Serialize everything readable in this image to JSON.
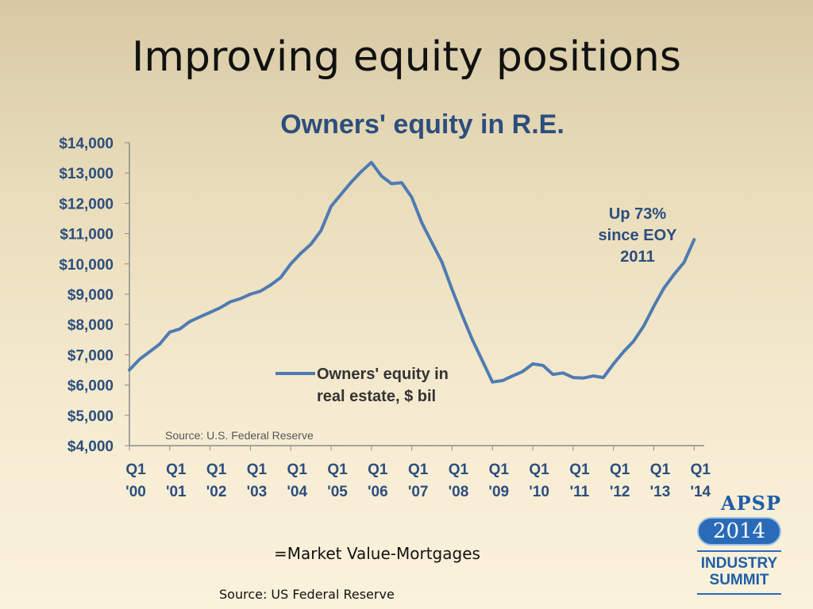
{
  "slide": {
    "title": "Improving equity positions",
    "footnote": "=Market Value-Mortgages",
    "source": "Source: US Federal Reserve"
  },
  "logo": {
    "brand": "APSP",
    "year": "2014",
    "line1": "INDUSTRY",
    "line2": "SUMMIT"
  },
  "chart_data": {
    "type": "line",
    "title": "Owners' equity in R.E.",
    "source_note": "Source: U.S. Federal Reserve",
    "annotation": [
      "Up 73%",
      "since EOY",
      "2011"
    ],
    "ylim": [
      4000,
      14000
    ],
    "yticks": [
      4000,
      5000,
      6000,
      7000,
      8000,
      9000,
      10000,
      11000,
      12000,
      13000,
      14000
    ],
    "ytick_labels": [
      "$4,000",
      "$5,000",
      "$6,000",
      "$7,000",
      "$8,000",
      "$9,000",
      "$10,000",
      "$11,000",
      "$12,000",
      "$13,000",
      "$14,000"
    ],
    "xlim": [
      2000,
      2014.25
    ],
    "xticks": [
      2000,
      2001,
      2002,
      2003,
      2004,
      2005,
      2006,
      2007,
      2008,
      2009,
      2010,
      2011,
      2012,
      2013,
      2014
    ],
    "xtick_labels": [
      [
        "Q1",
        "'00"
      ],
      [
        "Q1",
        "'01"
      ],
      [
        "Q1",
        "'02"
      ],
      [
        "Q1",
        "'03"
      ],
      [
        "Q1",
        "'04"
      ],
      [
        "Q1",
        "'05"
      ],
      [
        "Q1",
        "'06"
      ],
      [
        "Q1",
        "'07"
      ],
      [
        "Q1",
        "'08"
      ],
      [
        "Q1",
        "'09"
      ],
      [
        "Q1",
        "'10"
      ],
      [
        "Q1",
        "'11"
      ],
      [
        "Q1",
        "'12"
      ],
      [
        "Q1",
        "'13"
      ],
      [
        "Q1",
        "'14"
      ]
    ],
    "legend": [
      "Owners' equity in",
      "real estate, $ bil"
    ],
    "grid": false,
    "colors": {
      "line": "#4f7bb2",
      "text": "#2c4e7e"
    },
    "series": [
      {
        "name": "Owners' equity in real estate, $ bil",
        "x": [
          2000,
          2000.25,
          2000.5,
          2000.75,
          2001,
          2001.25,
          2001.5,
          2001.75,
          2002,
          2002.25,
          2002.5,
          2002.75,
          2003,
          2003.25,
          2003.5,
          2003.75,
          2004,
          2004.25,
          2004.5,
          2004.75,
          2005,
          2005.25,
          2005.5,
          2005.75,
          2006,
          2006.25,
          2006.5,
          2006.75,
          2007,
          2007.25,
          2007.5,
          2007.75,
          2008,
          2008.25,
          2008.5,
          2008.75,
          2009,
          2009.25,
          2009.5,
          2009.75,
          2010,
          2010.25,
          2010.5,
          2010.75,
          2011,
          2011.25,
          2011.5,
          2011.75,
          2012,
          2012.25,
          2012.5,
          2012.75,
          2013,
          2013.25,
          2013.5,
          2013.75,
          2014
        ],
        "values": [
          6500,
          6850,
          7100,
          7350,
          7750,
          7850,
          8100,
          8250,
          8400,
          8550,
          8750,
          8850,
          9000,
          9100,
          9300,
          9550,
          10000,
          10350,
          10650,
          11100,
          11900,
          12300,
          12700,
          13050,
          13350,
          12900,
          12650,
          12680,
          12200,
          11350,
          10700,
          10050,
          9150,
          8300,
          7500,
          6800,
          6100,
          6150,
          6300,
          6450,
          6700,
          6650,
          6350,
          6400,
          6250,
          6230,
          6300,
          6250,
          6700,
          7100,
          7450,
          7950,
          8600,
          9200,
          9650,
          10050,
          10800
        ]
      }
    ]
  }
}
